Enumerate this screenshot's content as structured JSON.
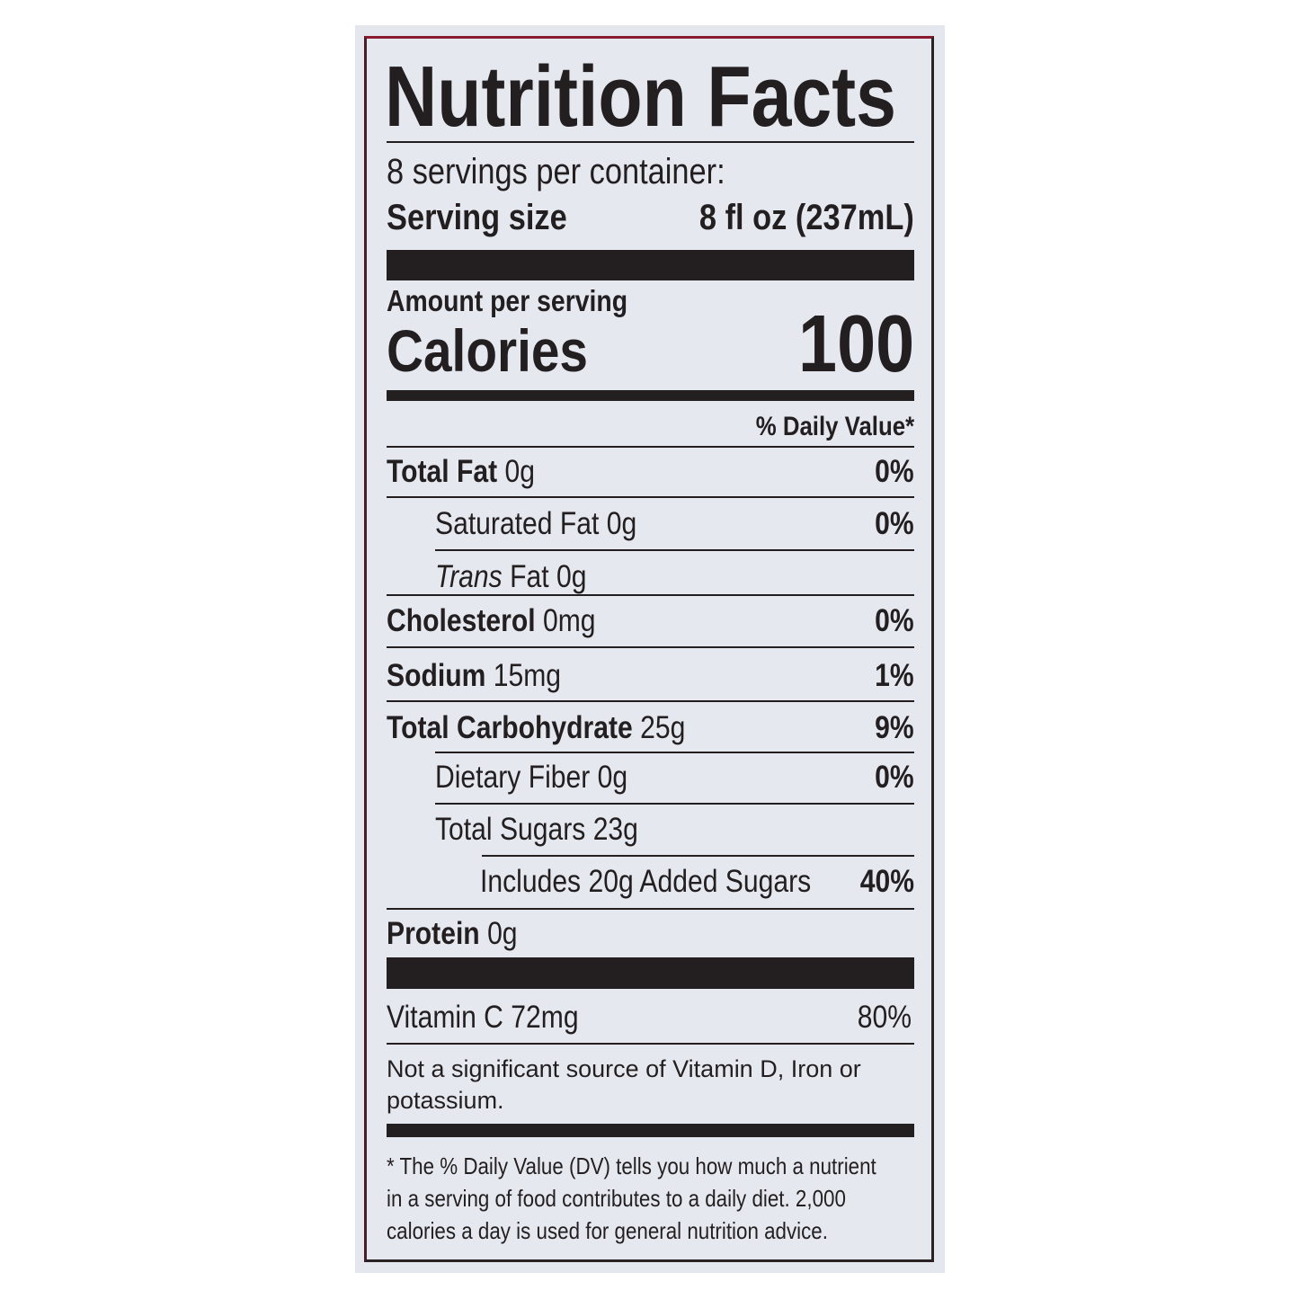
{
  "title": "Nutrition Facts",
  "servings_per_container": "8 servings per container:",
  "serving_size_label": "Serving size",
  "serving_size_value": "8 fl oz (237mL)",
  "amount_per_serving": "Amount per serving",
  "calories_label": "Calories",
  "calories_value": "100",
  "daily_value_header": "% Daily Value*",
  "nutrients": [
    {
      "name": "Total Fat",
      "amount": "0g",
      "dv": "0%"
    },
    {
      "name": "Saturated Fat",
      "amount": "0g",
      "dv": "0%"
    },
    {
      "name": "Trans",
      "name_suffix": "Fat",
      "amount": "0g",
      "dv": ""
    },
    {
      "name": "Cholesterol",
      "amount": "0mg",
      "dv": "0%"
    },
    {
      "name": "Sodium",
      "amount": "15mg",
      "dv": "1%"
    },
    {
      "name": "Total Carbohydrate",
      "amount": "25g",
      "dv": "9%"
    },
    {
      "name": "Dietary Fiber",
      "amount": "0g",
      "dv": "0%"
    },
    {
      "name": "Total Sugars",
      "amount": "23g",
      "dv": ""
    },
    {
      "name": "Includes 20g Added Sugars",
      "amount": "",
      "dv": "40%"
    },
    {
      "name": "Protein",
      "amount": "0g",
      "dv": ""
    }
  ],
  "vitamins": [
    {
      "name": "Vitamin C 72mg",
      "dv": "80%"
    }
  ],
  "not_significant": "Not a significant source of Vitamin D, Iron or potassium.",
  "footnote": "* The % Daily Value (DV) tells you how much a nutrient in a serving of food contributes to a daily diet. 2,000 calories a day is used for general nutrition advice.",
  "colors": {
    "ink": "#231f20",
    "label_bg": "#e6e8f0",
    "border_accent": "#8a1a2e"
  }
}
